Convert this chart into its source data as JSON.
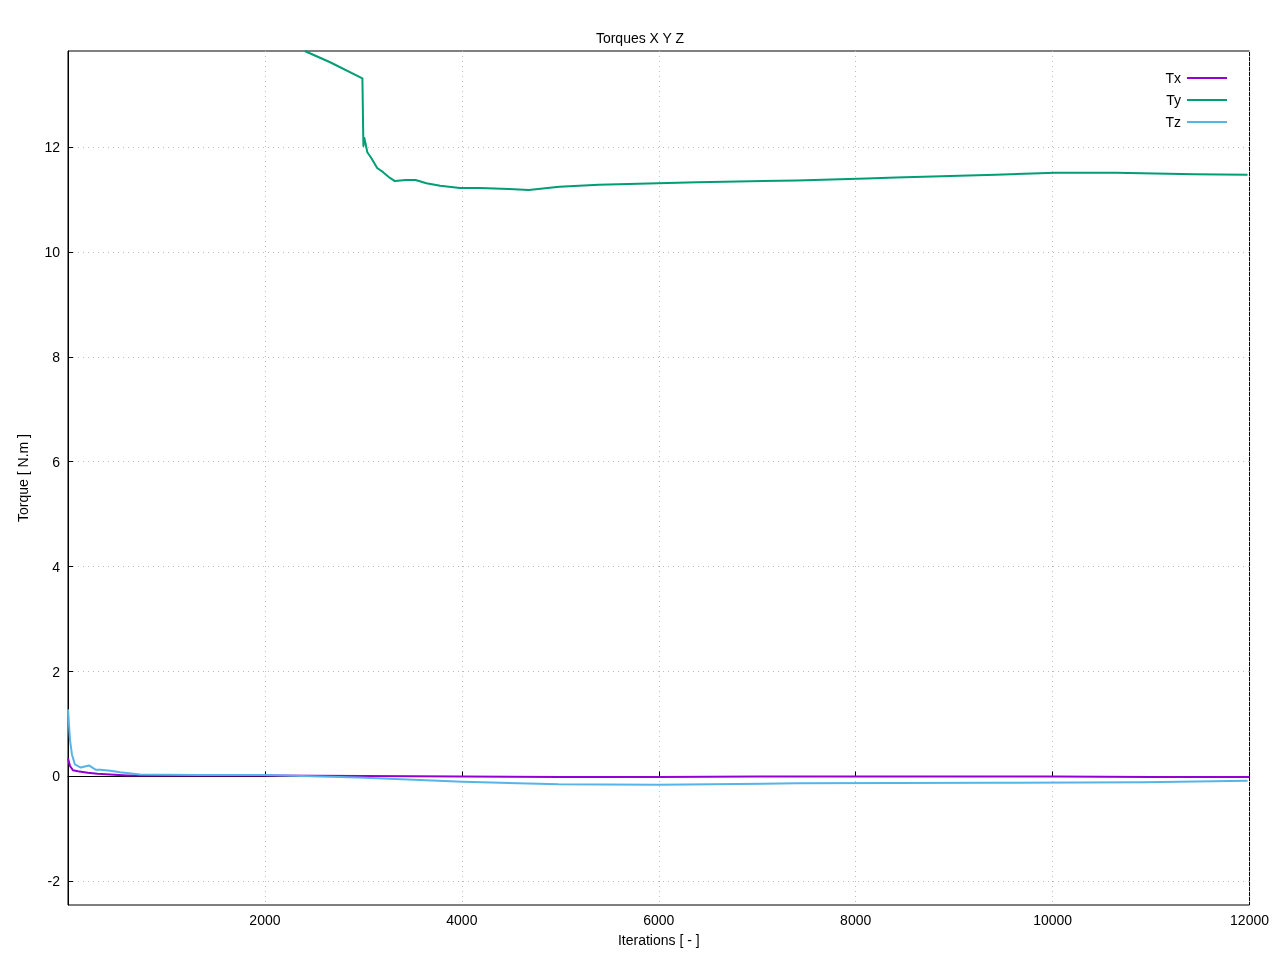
{
  "chart_data": {
    "type": "line",
    "title": "Torques X Y Z",
    "xlabel": "Iterations [ - ]",
    "ylabel": "Torque [ N.m ]",
    "xlim": [
      0,
      12000
    ],
    "xticks": [
      2000,
      4000,
      6000,
      8000,
      10000,
      12000
    ],
    "ylim": [
      -2.45,
      13.83
    ],
    "yticks": [
      -2,
      0,
      2,
      4,
      6,
      8,
      10,
      12
    ],
    "grid": true,
    "legend": "top right",
    "line_style": "solid",
    "marker": "none",
    "series": [
      {
        "name": "Tx",
        "color": "#9400d3",
        "x": [
          0,
          20,
          50,
          100,
          200,
          300,
          600,
          1000,
          1500,
          2000,
          3000,
          4000,
          5000,
          6000,
          7000,
          8000,
          9000,
          10000,
          11000,
          12000
        ],
        "values": [
          0.35,
          0.2,
          0.12,
          0.1,
          0.07,
          0.05,
          0.02,
          0.02,
          0.02,
          0.02,
          0.01,
          0,
          -0.01,
          -0.01,
          0,
          0,
          0,
          0,
          -0.01,
          -0.01
        ]
      },
      {
        "name": "Ty",
        "color": "#009e73",
        "x": [
          2404,
          2657,
          2990,
          3000,
          3010,
          3040,
          3080,
          3140,
          3200,
          3270,
          3320,
          3430,
          3530,
          3640,
          3780,
          3980,
          4180,
          4480,
          4680,
          4990,
          5390,
          6390,
          7400,
          8110,
          8410,
          9420,
          10030,
          10640,
          11440,
          11980
        ],
        "values": [
          13.83,
          13.62,
          13.31,
          12.02,
          12.17,
          11.9,
          11.79,
          11.6,
          11.52,
          11.41,
          11.35,
          11.37,
          11.37,
          11.31,
          11.26,
          11.22,
          11.22,
          11.2,
          11.18,
          11.24,
          11.28,
          11.33,
          11.36,
          11.4,
          11.42,
          11.47,
          11.51,
          11.51,
          11.48,
          11.47
        ]
      },
      {
        "name": "Tz",
        "color": "#56b4e9",
        "x": [
          0,
          20,
          40,
          70,
          130,
          212,
          280,
          330,
          430,
          530,
          730,
          1330,
          1990,
          2950,
          4010,
          4980,
          5990,
          7400,
          9420,
          10930,
          11980
        ],
        "values": [
          1.28,
          0.7,
          0.42,
          0.23,
          0.17,
          0.21,
          0.13,
          0.13,
          0.11,
          0.08,
          0.04,
          0.03,
          0.03,
          -0.02,
          -0.1,
          -0.15,
          -0.16,
          -0.13,
          -0.12,
          -0.11,
          -0.08
        ]
      }
    ]
  }
}
